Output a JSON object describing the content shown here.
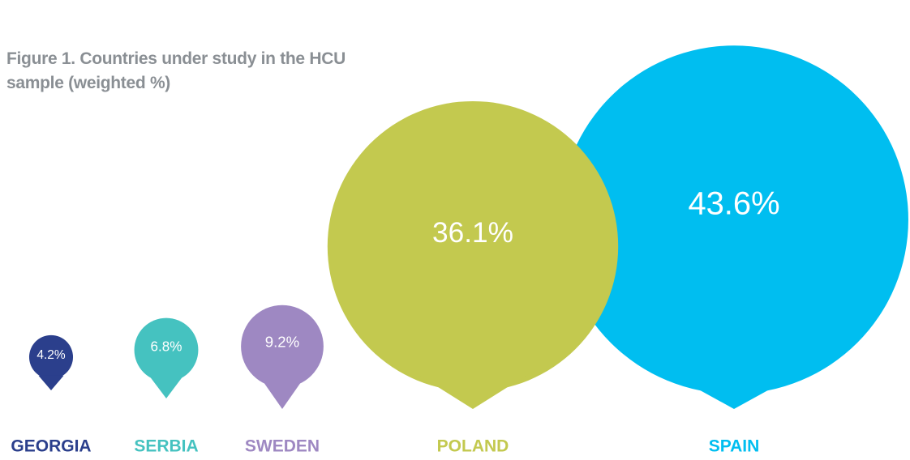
{
  "chart_data": {
    "type": "pin-bubble",
    "title": "Figure 1. Countries under study in the HCU sample (weighted %)",
    "categories": [
      "GEORGIA",
      "SERBIA",
      "SWEDEN",
      "POLAND",
      "SPAIN"
    ],
    "values": [
      4.2,
      6.8,
      9.2,
      36.1,
      43.6
    ],
    "value_labels": [
      "4.2%",
      "6.8%",
      "9.2%",
      "36.1%",
      "43.6%"
    ],
    "colors": [
      "#2b3f8c",
      "#45c2c0",
      "#9e88c2",
      "#c3c94f",
      "#00bef0"
    ]
  }
}
